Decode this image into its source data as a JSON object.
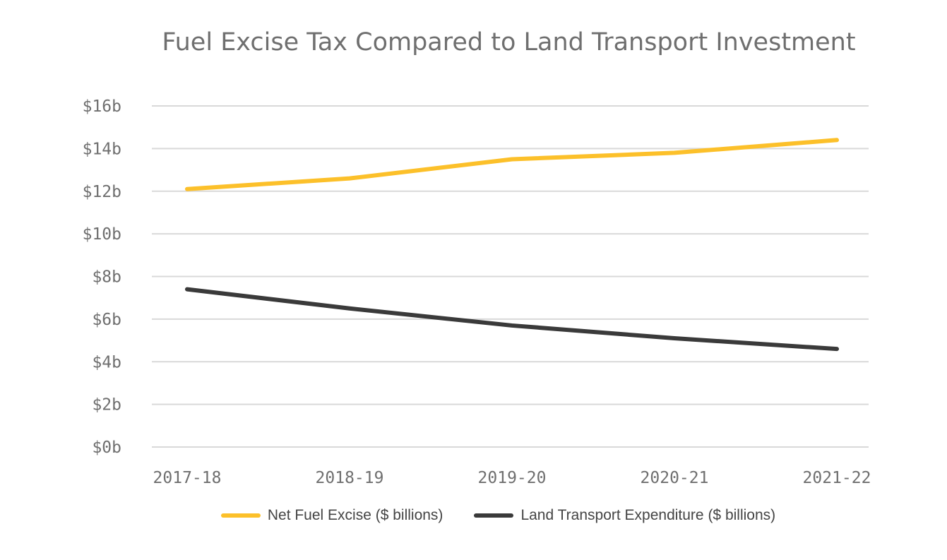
{
  "chart_data": {
    "type": "line",
    "title": "Fuel Excise Tax Compared to Land Transport Investment",
    "categories": [
      "2017-18",
      "2018-19",
      "2019-20",
      "2020-21",
      "2021-22"
    ],
    "series": [
      {
        "name": "Net Fuel Excise ($ billions)",
        "color": "#fcc02a",
        "values": [
          12.1,
          12.6,
          13.5,
          13.8,
          14.4
        ]
      },
      {
        "name": "Land Transport Expenditure ($ billions)",
        "color": "#3a3a3a",
        "values": [
          7.4,
          6.5,
          5.7,
          5.1,
          4.6
        ]
      }
    ],
    "y_ticks": [
      "$0b",
      "$2b",
      "$4b",
      "$6b",
      "$8b",
      "$10b",
      "$12b",
      "$14b",
      "$16b"
    ],
    "ylim": [
      0,
      16
    ],
    "grid": true,
    "legend_position": "bottom"
  }
}
